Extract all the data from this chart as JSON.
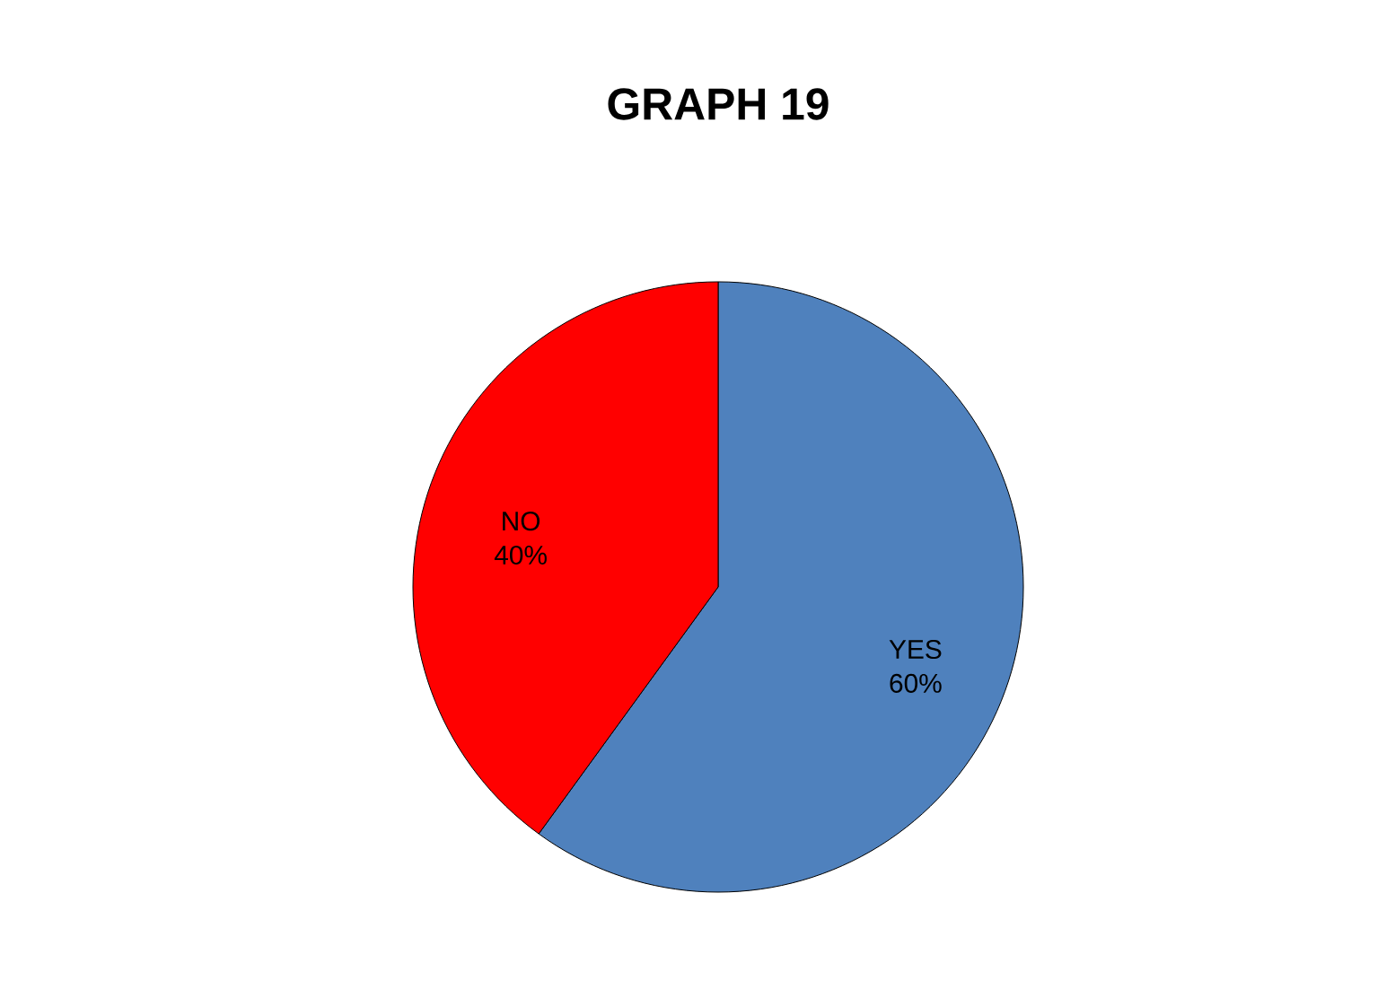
{
  "chart_data": {
    "type": "pie",
    "title": "GRAPH 19",
    "categories": [
      "YES",
      "NO"
    ],
    "values": [
      60,
      40
    ],
    "value_labels": [
      "60%",
      "40%"
    ],
    "colors": [
      "#4f81bd",
      "#ff0000"
    ]
  }
}
